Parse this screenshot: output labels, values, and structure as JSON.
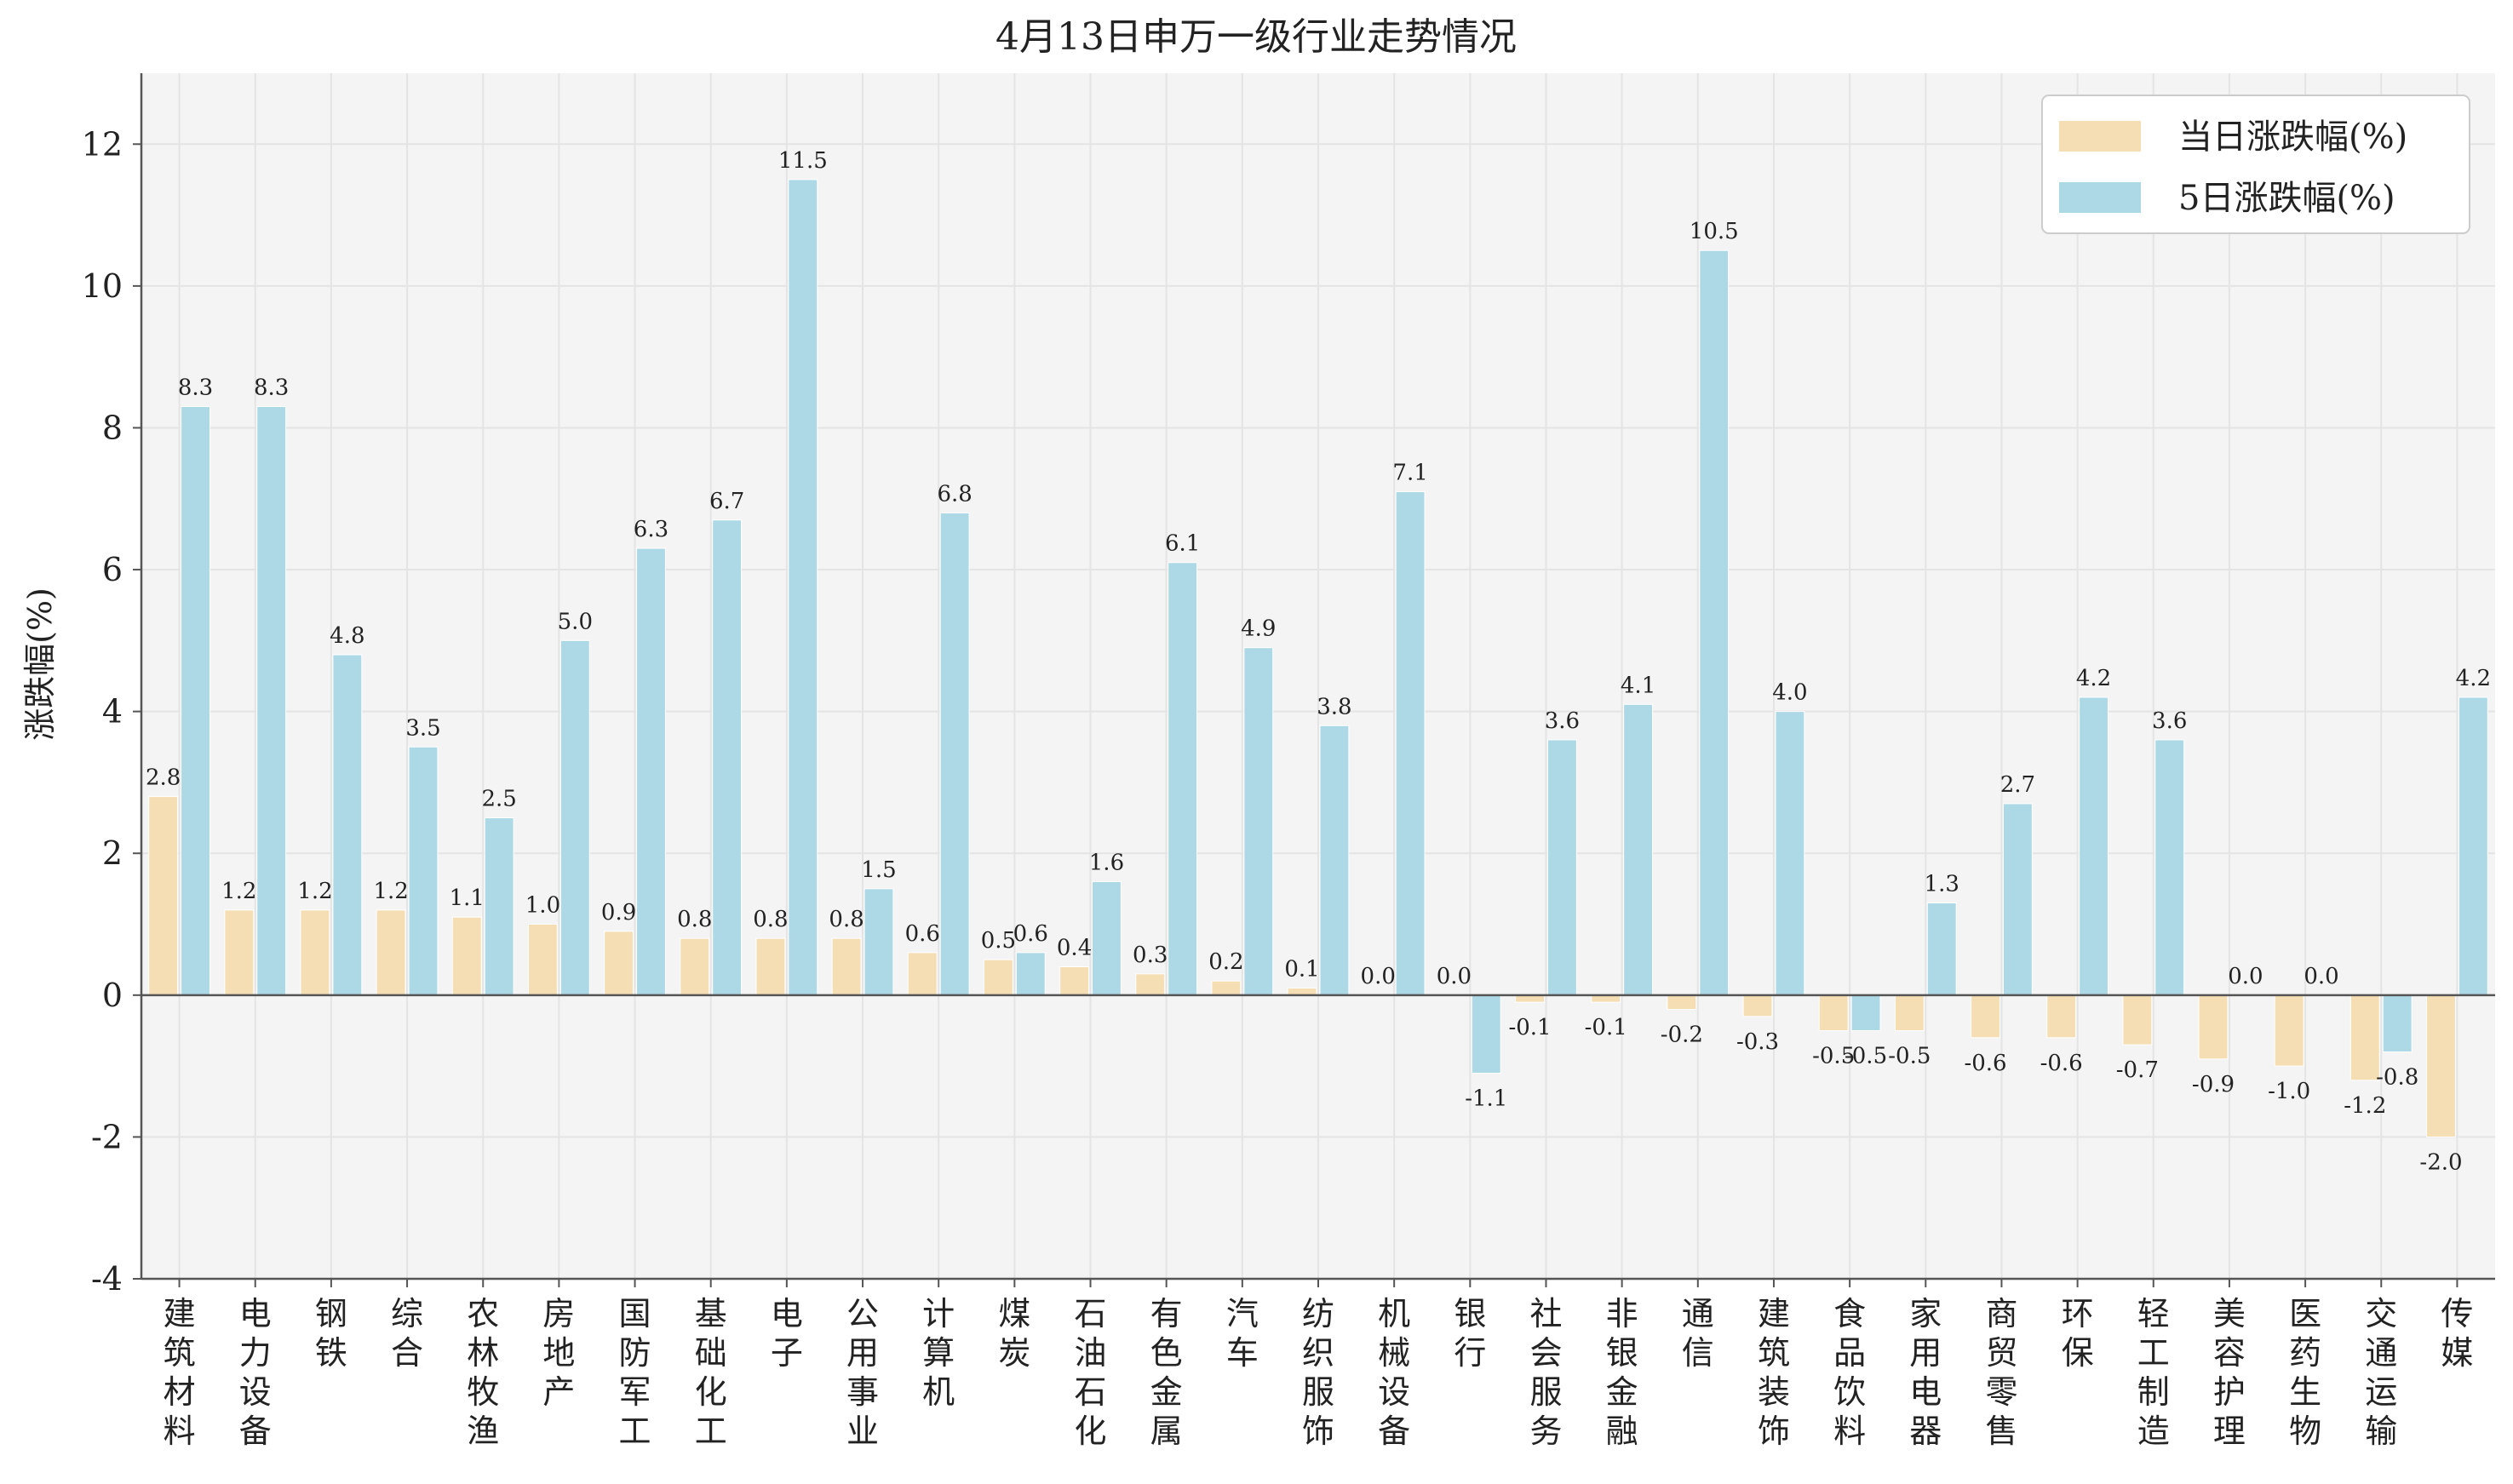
{
  "chart_data": {
    "type": "bar",
    "title": "4月13日申万一级行业走势情况",
    "ylabel": "涨跌幅(%)",
    "xlabel": "",
    "ylim": [
      -4,
      13
    ],
    "yticks": [
      -4,
      -2,
      0,
      2,
      4,
      6,
      8,
      10,
      12
    ],
    "grid": true,
    "legend_position": "top-right",
    "categories": [
      "建筑材料",
      "电力设备",
      "钢铁",
      "综合",
      "农林牧渔",
      "房地产",
      "国防军工",
      "基础化工",
      "电子",
      "公用事业",
      "计算机",
      "煤炭",
      "石油石化",
      "有色金属",
      "汽车",
      "纺织服饰",
      "机械设备",
      "银行",
      "社会服务",
      "非银金融",
      "通信",
      "建筑装饰",
      "食品饮料",
      "家用电器",
      "商贸零售",
      "环保",
      "轻工制造",
      "美容护理",
      "医药生物",
      "交通运输",
      "传媒"
    ],
    "series": [
      {
        "name": "当日涨跌幅(%)",
        "color": "#f5deb3",
        "values": [
          2.8,
          1.2,
          1.2,
          1.2,
          1.1,
          1.0,
          0.9,
          0.8,
          0.8,
          0.8,
          0.6,
          0.5,
          0.4,
          0.3,
          0.2,
          0.1,
          0.0,
          0.0,
          -0.1,
          -0.1,
          -0.2,
          -0.3,
          -0.5,
          -0.5,
          -0.6,
          -0.6,
          -0.7,
          -0.9,
          -1.0,
          -1.2,
          -2.0
        ]
      },
      {
        "name": "5日涨跌幅(%)",
        "color": "#add8e6",
        "values": [
          8.3,
          8.3,
          4.8,
          3.5,
          2.5,
          5.0,
          6.3,
          6.7,
          11.5,
          1.5,
          6.8,
          0.6,
          1.6,
          6.1,
          4.9,
          3.8,
          7.1,
          -1.1,
          3.6,
          4.1,
          10.5,
          4.0,
          -0.5,
          1.3,
          2.7,
          4.2,
          3.6,
          0.0,
          0.0,
          -0.8,
          4.2
        ]
      }
    ]
  },
  "colors": {
    "plot_background": "#f4f4f4",
    "grid": "#e4e4e4",
    "axis": "#555555"
  }
}
